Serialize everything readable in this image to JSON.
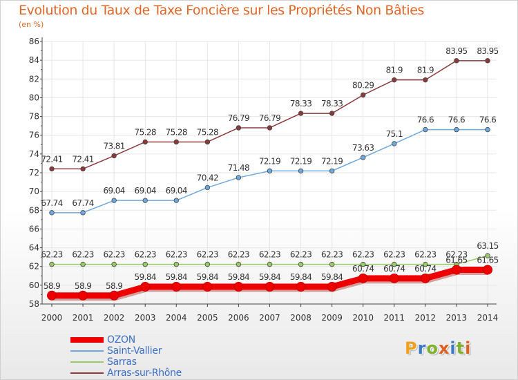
{
  "title": "Evolution du Taux de Taxe Foncière sur les Propriétés Non Bâties",
  "subtitle": "(en %)",
  "logo": {
    "letters": [
      "P",
      "r",
      "o",
      "x",
      "i",
      "t",
      "i"
    ],
    "colors": [
      "#f0a020",
      "#3a78c8",
      "#80b030",
      "#e06020",
      "#3a78c8",
      "#80b030",
      "#e06020"
    ]
  },
  "colors": {
    "axis": "#444444",
    "tick_mark": "#cc3333",
    "grid": "#e6e6e6"
  },
  "chart_data": {
    "type": "line",
    "x": [
      2000,
      2001,
      2002,
      2003,
      2004,
      2005,
      2006,
      2007,
      2008,
      2009,
      2010,
      2011,
      2012,
      2013,
      2014
    ],
    "ylim": [
      58,
      86
    ],
    "yticks": [
      58,
      60,
      62,
      64,
      66,
      68,
      70,
      72,
      74,
      76,
      78,
      80,
      82,
      84,
      86
    ],
    "grid": true,
    "legend_position": "bottom-left",
    "series": [
      {
        "name": "OZON",
        "color": "#ee0000",
        "values": [
          58.9,
          58.9,
          58.9,
          59.84,
          59.84,
          59.84,
          59.84,
          59.84,
          59.84,
          59.84,
          60.74,
          60.74,
          60.74,
          61.65,
          61.65
        ],
        "labels": [
          "58.9",
          "58.9",
          "58.9",
          "59.84",
          "59.84",
          "59.84",
          "59.84",
          "59.84",
          "59.84",
          "59.84",
          "60.74",
          "60.74",
          "60.74",
          "61.65",
          "61.65"
        ]
      },
      {
        "name": "Saint-Vallier",
        "color": "#6fa8dc",
        "values": [
          67.74,
          67.74,
          69.04,
          69.04,
          69.04,
          70.42,
          71.48,
          72.19,
          72.19,
          72.19,
          73.63,
          75.1,
          76.6,
          76.6,
          76.6
        ],
        "labels": [
          "67.74",
          "67.74",
          "69.04",
          "69.04",
          "69.04",
          "70.42",
          "71.48",
          "72.19",
          "72.19",
          "72.19",
          "73.63",
          "75.1",
          "76.6",
          "76.6",
          "76.6"
        ]
      },
      {
        "name": "Sarras",
        "color": "#99cc66",
        "values": [
          62.23,
          62.23,
          62.23,
          62.23,
          62.23,
          62.23,
          62.23,
          62.23,
          62.23,
          62.23,
          62.23,
          62.23,
          62.23,
          62.23,
          63.15
        ],
        "labels": [
          "62.23",
          "62.23",
          "62.23",
          "62.23",
          "62.23",
          "62.23",
          "62.23",
          "62.23",
          "62.23",
          "62.23",
          "62.23",
          "62.23",
          "62.23",
          "62.23",
          "63.15"
        ]
      },
      {
        "name": "Arras-sur-Rhône",
        "color": "#8b3a3a",
        "values": [
          72.41,
          72.41,
          73.81,
          75.28,
          75.28,
          75.28,
          76.79,
          76.79,
          78.33,
          78.33,
          80.29,
          81.9,
          81.9,
          83.95,
          83.95
        ],
        "labels": [
          "72.41",
          "72.41",
          "73.81",
          "75.28",
          "75.28",
          "75.28",
          "76.79",
          "76.79",
          "78.33",
          "78.33",
          "80.29",
          "81.9",
          "81.9",
          "83.95",
          "83.95"
        ]
      }
    ]
  }
}
